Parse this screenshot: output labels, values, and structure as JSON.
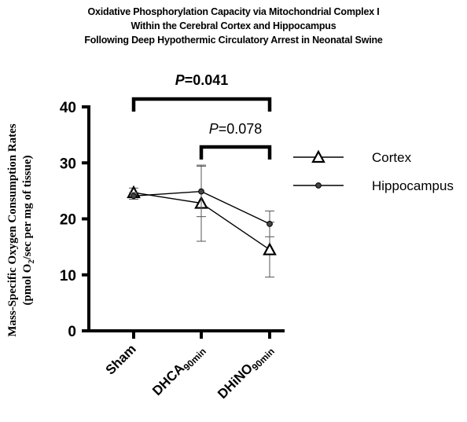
{
  "chart_data": {
    "type": "line",
    "title_lines": [
      "Oxidative Phosphorylation Capacity via Mitochondrial Complex I",
      "Within the Cerebral Cortex and Hippocampus",
      "Following Deep Hypothermic Circulatory Arrest in Neonatal Swine"
    ],
    "ylabel_line1": "Mass-Specific Oxygen Consumption Rates",
    "ylabel_line2": {
      "pre": "(pmol O",
      "sub": "2",
      "post": "/sec per mg of tissue)"
    },
    "categories": [
      {
        "main": "Sham",
        "sub": ""
      },
      {
        "main": "DHCA",
        "sub": "90min"
      },
      {
        "main": "DHiNO",
        "sub": "90min"
      }
    ],
    "ylim": [
      0,
      40
    ],
    "yticks": [
      "0",
      "10",
      "20",
      "30",
      "40"
    ],
    "series": [
      {
        "name": "Cortex",
        "marker": "triangle",
        "values": [
          24.7,
          22.8,
          14.5
        ],
        "err": [
          0.8,
          6.8,
          4.9
        ]
      },
      {
        "name": "Hippocampus",
        "marker": "circle",
        "values": [
          24.1,
          24.9,
          19.1
        ],
        "err": [
          0.6,
          4.5,
          2.3
        ]
      }
    ],
    "comparisons": [
      {
        "from": 0,
        "to": 2,
        "p_label": "P",
        "p_value": "=0.041",
        "bold": true
      },
      {
        "from": 1,
        "to": 2,
        "p_label": "P",
        "p_value": "=0.078",
        "bold": false
      }
    ],
    "legend_position": "right",
    "grid": false
  }
}
